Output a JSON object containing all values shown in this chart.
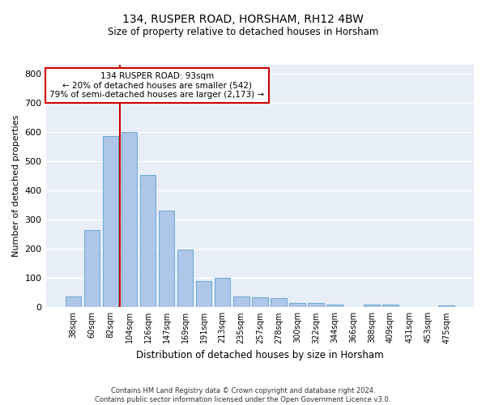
{
  "title1": "134, RUSPER ROAD, HORSHAM, RH12 4BW",
  "title2": "Size of property relative to detached houses in Horsham",
  "xlabel": "Distribution of detached houses by size in Horsham",
  "ylabel": "Number of detached properties",
  "categories": [
    "38sqm",
    "60sqm",
    "82sqm",
    "104sqm",
    "126sqm",
    "147sqm",
    "169sqm",
    "191sqm",
    "213sqm",
    "235sqm",
    "257sqm",
    "278sqm",
    "300sqm",
    "322sqm",
    "344sqm",
    "366sqm",
    "388sqm",
    "409sqm",
    "431sqm",
    "453sqm",
    "475sqm"
  ],
  "values": [
    37,
    265,
    585,
    600,
    452,
    330,
    197,
    90,
    102,
    37,
    35,
    30,
    15,
    15,
    10,
    0,
    8,
    10,
    0,
    0,
    7
  ],
  "bar_color": "#aec6e8",
  "bar_edge_color": "#5a9fd4",
  "vline_color": "#cc0000",
  "annotation_text": "134 RUSPER ROAD: 93sqm\n← 20% of detached houses are smaller (542)\n79% of semi-detached houses are larger (2,173) →",
  "annotation_box_color": "#ffffff",
  "annotation_box_edge": "#cc0000",
  "ylim": [
    0,
    830
  ],
  "yticks": [
    0,
    100,
    200,
    300,
    400,
    500,
    600,
    700,
    800
  ],
  "bg_color": "#e8eef8",
  "grid_color": "#ffffff",
  "footnote": "Contains HM Land Registry data © Crown copyright and database right 2024.\nContains public sector information licensed under the Open Government Licence v3.0."
}
